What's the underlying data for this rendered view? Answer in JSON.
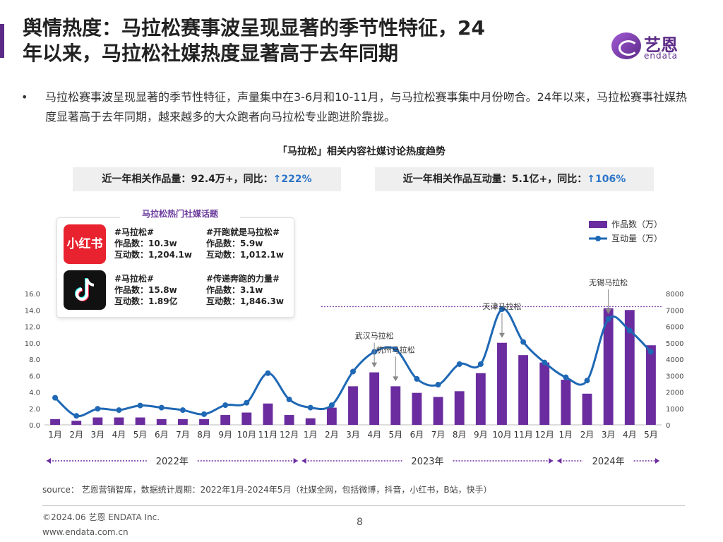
{
  "header": {
    "title_line1": "舆情热度：马拉松赛事波呈现显著的季节性特征，24",
    "title_line2": "年以来，马拉松社媒热度显著高于去年同期",
    "logo_cn": "艺恩",
    "logo_en": "endata"
  },
  "bullet": {
    "dot": "•",
    "text": "马拉松赛事波呈现显著的季节性特征，声量集中在3-6月和10-11月，与马拉松赛事集中月份吻合。24年以来，马拉松赛事社媒热度显著高于去年同期，越来越多的大众跑者向马拉松专业跑进阶靠拢。"
  },
  "stats": {
    "works_label": "近一年相关作品量：92.4万+，同比：",
    "works_change": "↑222%",
    "interact_label": "近一年相关作品互动量：5.1亿+，同比：",
    "interact_change": "↑106%"
  },
  "topics": {
    "title": "马拉松热门社媒话题",
    "xhs_label": "小红书",
    "items": [
      {
        "tag": "#马拉松#",
        "l1": "作品数：10.3w",
        "l2": "互动数：1,204.1w"
      },
      {
        "tag": "#开跑就是马拉松#",
        "l1": "作品数：5.9w",
        "l2": "互动数：1,012.1w"
      },
      {
        "tag": "#马拉松#",
        "l1": "作品数：15.8w",
        "l2": "互动数：1.89亿"
      },
      {
        "tag": "#传递奔跑的力量#",
        "l1": "作品数：3.1w",
        "l2": "互动数：1,846.3w"
      }
    ]
  },
  "chart_data": {
    "type": "bar",
    "title": "「马拉松」相关内容社媒讨论热度趋势",
    "categories": [
      "1月",
      "2月",
      "3月",
      "4月",
      "5月",
      "6月",
      "7月",
      "8月",
      "9月",
      "10月",
      "11月",
      "12月",
      "1月",
      "2月",
      "3月",
      "4月",
      "5月",
      "6月",
      "7月",
      "8月",
      "9月",
      "10月",
      "11月",
      "12月",
      "1月",
      "2月",
      "3月",
      "4月",
      "5月"
    ],
    "series": [
      {
        "name": "作品数（万）",
        "type": "bar",
        "axis": "left",
        "color": "#6a2c9e",
        "values": [
          0.7,
          0.5,
          0.9,
          0.9,
          0.9,
          0.7,
          0.7,
          0.7,
          1.2,
          1.5,
          2.6,
          1.2,
          0.8,
          2.1,
          4.7,
          6.4,
          4.7,
          3.9,
          3.4,
          4.1,
          6.3,
          10.0,
          8.5,
          7.6,
          5.5,
          3.8,
          14.2,
          14.0,
          9.7
        ]
      },
      {
        "name": "互动量（万）",
        "type": "line",
        "axis": "right",
        "color": "#1f68b5",
        "values": [
          1650,
          550,
          980,
          900,
          1180,
          1050,
          900,
          650,
          1200,
          1350,
          3150,
          1550,
          1050,
          1200,
          3250,
          4450,
          4600,
          2800,
          2450,
          3700,
          3700,
          7050,
          5050,
          3800,
          2900,
          2700,
          6450,
          5750,
          4450
        ]
      }
    ],
    "y_left": {
      "range": [
        0,
        16
      ],
      "ticks": [
        "0.0",
        "2.0",
        "4.0",
        "6.0",
        "8.0",
        "10.0",
        "12.0",
        "14.0",
        "16.0"
      ]
    },
    "y_right": {
      "range": [
        0,
        8000
      ],
      "ticks": [
        "0",
        "1000",
        "2000",
        "3000",
        "4000",
        "5000",
        "6000",
        "7000",
        "8000"
      ]
    },
    "years": [
      "2022年",
      "2023年",
      "2024年"
    ],
    "annotations": [
      {
        "label": "武汉马拉松",
        "index": 15
      },
      {
        "label": "杭州马拉松",
        "index": 16
      },
      {
        "label": "天津马拉松",
        "index": 21
      },
      {
        "label": "无锡马拉松",
        "index": 26
      }
    ],
    "reference_line": {
      "value": 7200,
      "axis": "right",
      "style": "dotted"
    },
    "legend_position": "top-right"
  },
  "footer": {
    "source": "source： 艺恩营销智库，数据统计周期：2022年1月-2024年5月（社媒全网，包括微博，抖音，小红书，B站，快手）",
    "copyright": "©2024.06  艺恩 ENDATA Inc.",
    "website": "www.endata.com.cn",
    "page": "8"
  }
}
